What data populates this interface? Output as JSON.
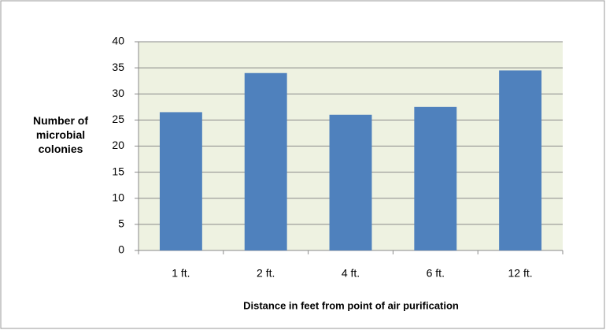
{
  "chart_data": {
    "type": "bar",
    "y_label": "Number of microbial colonies",
    "x_label": "Distance in feet from point of air purification",
    "categories": [
      "1 ft.",
      "2 ft.",
      "4 ft.",
      "6 ft.",
      "12 ft."
    ],
    "values": [
      26.5,
      34,
      26,
      27.5,
      34.5
    ],
    "color": "#4f81bd",
    "ylim": [
      0,
      40
    ],
    "yticks": [
      0,
      5,
      10,
      15,
      20,
      25,
      30,
      35,
      40
    ],
    "grid": true
  }
}
